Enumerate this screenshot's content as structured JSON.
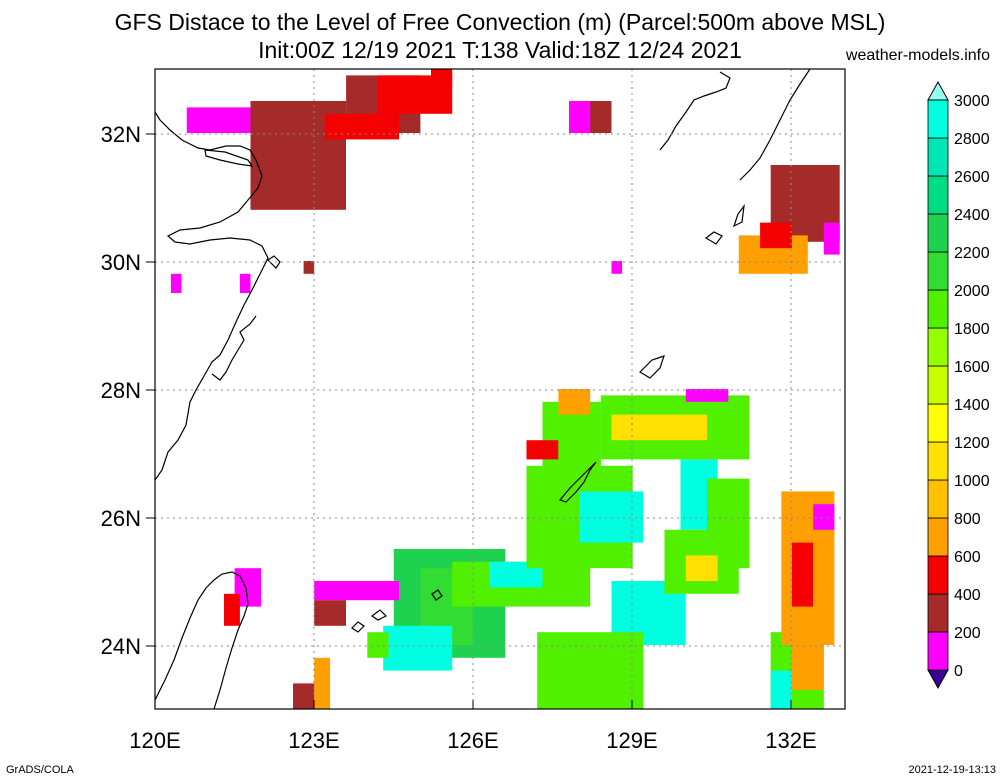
{
  "chart_data": {
    "type": "heatmap",
    "title": "GFS Distace to the Level of Free Convection (m) (Parcel:500m above MSL)",
    "subtitle": "Init:00Z 12/19 2021 T:138 Valid:18Z 12/24 2021",
    "source": "weather-models.info",
    "x_ticks": [
      "120E",
      "123E",
      "126E",
      "129E",
      "132E"
    ],
    "x_values": [
      120,
      123,
      126,
      129,
      132
    ],
    "y_ticks": [
      "24N",
      "26N",
      "28N",
      "30N",
      "32N"
    ],
    "y_values": [
      24,
      26,
      28,
      30,
      32
    ],
    "xlim": [
      120,
      133
    ],
    "ylim": [
      23,
      33
    ],
    "grid": true,
    "colorbar": {
      "labels": [
        "0",
        "200",
        "400",
        "600",
        "800",
        "1000",
        "1200",
        "1400",
        "1600",
        "1800",
        "2000",
        "2200",
        "2400",
        "2600",
        "2800",
        "3000"
      ],
      "colors": [
        "#3c0096",
        "#ff00ff",
        "#a52a2a",
        "#f50000",
        "#ffa000",
        "#ffc000",
        "#ffe000",
        "#ffff00",
        "#c8ff00",
        "#96ff00",
        "#50f000",
        "#32dc32",
        "#1ed250",
        "#00dc82",
        "#00e6b4",
        "#00ffe1",
        "#96fff0"
      ]
    },
    "regions": [
      {
        "color": "#a52a2a",
        "lon": [
          121.8,
          123.6
        ],
        "lat": [
          30.8,
          32.5
        ]
      },
      {
        "color": "#a52a2a",
        "lon": [
          123.6,
          125.0
        ],
        "lat": [
          32.0,
          32.9
        ]
      },
      {
        "color": "#f50000",
        "lon": [
          124.2,
          125.6
        ],
        "lat": [
          32.3,
          32.9
        ]
      },
      {
        "color": "#f50000",
        "lon": [
          123.2,
          124.6
        ],
        "lat": [
          31.9,
          32.3
        ]
      },
      {
        "color": "#f50000",
        "lon": [
          125.2,
          125.6
        ],
        "lat": [
          32.7,
          33.0
        ]
      },
      {
        "color": "#ff00ff",
        "lon": [
          120.6,
          121.8
        ],
        "lat": [
          32.0,
          32.4
        ]
      },
      {
        "color": "#ff00ff",
        "lon": [
          127.8,
          128.6
        ],
        "lat": [
          32.0,
          32.5
        ]
      },
      {
        "color": "#a52a2a",
        "lon": [
          128.2,
          128.6
        ],
        "lat": [
          32.0,
          32.5
        ]
      },
      {
        "color": "#a52a2a",
        "lon": [
          131.6,
          132.9
        ],
        "lat": [
          30.3,
          31.5
        ]
      },
      {
        "color": "#ffa000",
        "lon": [
          131.0,
          132.3
        ],
        "lat": [
          29.8,
          30.4
        ]
      },
      {
        "color": "#f50000",
        "lon": [
          131.4,
          132.0
        ],
        "lat": [
          30.2,
          30.6
        ]
      },
      {
        "color": "#ff00ff",
        "lon": [
          132.6,
          132.9
        ],
        "lat": [
          30.1,
          30.6
        ]
      },
      {
        "color": "#a52a2a",
        "lon": [
          122.8,
          123.0
        ],
        "lat": [
          29.8,
          30.0
        ]
      },
      {
        "color": "#ff00ff",
        "lon": [
          121.6,
          121.8
        ],
        "lat": [
          29.5,
          29.8
        ]
      },
      {
        "color": "#ff00ff",
        "lon": [
          120.3,
          120.5
        ],
        "lat": [
          29.5,
          29.8
        ]
      },
      {
        "color": "#ff00ff",
        "lon": [
          128.6,
          128.8
        ],
        "lat": [
          29.8,
          30.0
        ]
      },
      {
        "color": "#1ed250",
        "lon": [
          124.5,
          126.6
        ],
        "lat": [
          23.8,
          25.5
        ]
      },
      {
        "color": "#32dc32",
        "lon": [
          125.0,
          126.0
        ],
        "lat": [
          24.0,
          25.2
        ]
      },
      {
        "color": "#50f000",
        "lon": [
          125.6,
          128.2
        ],
        "lat": [
          24.6,
          25.3
        ]
      },
      {
        "color": "#00ffe1",
        "lon": [
          126.3,
          127.3
        ],
        "lat": [
          24.9,
          25.3
        ]
      },
      {
        "color": "#50f000",
        "lon": [
          127.0,
          129.0
        ],
        "lat": [
          25.2,
          26.8
        ]
      },
      {
        "color": "#00ffe1",
        "lon": [
          128.0,
          129.2
        ],
        "lat": [
          25.6,
          26.4
        ]
      },
      {
        "color": "#50f000",
        "lon": [
          127.3,
          128.4
        ],
        "lat": [
          26.6,
          27.8
        ]
      },
      {
        "color": "#ffa000",
        "lon": [
          127.6,
          128.2
        ],
        "lat": [
          27.6,
          28.0
        ]
      },
      {
        "color": "#f50000",
        "lon": [
          127.0,
          127.6
        ],
        "lat": [
          26.9,
          27.2
        ]
      },
      {
        "color": "#50f000",
        "lon": [
          128.4,
          131.2
        ],
        "lat": [
          26.9,
          27.9
        ]
      },
      {
        "color": "#ffe000",
        "lon": [
          128.6,
          130.4
        ],
        "lat": [
          27.2,
          27.6
        ]
      },
      {
        "color": "#ff00ff",
        "lon": [
          130.0,
          130.8
        ],
        "lat": [
          27.8,
          28.0
        ]
      },
      {
        "color": "#00ffe1",
        "lon": [
          129.9,
          130.6
        ],
        "lat": [
          25.8,
          26.9
        ]
      },
      {
        "color": "#50f000",
        "lon": [
          130.4,
          131.2
        ],
        "lat": [
          25.2,
          26.6
        ]
      },
      {
        "color": "#00ffe1",
        "lon": [
          128.6,
          130.0
        ],
        "lat": [
          24.0,
          25.0
        ]
      },
      {
        "color": "#50f000",
        "lon": [
          127.2,
          129.2
        ],
        "lat": [
          23.0,
          24.2
        ]
      },
      {
        "color": "#50f000",
        "lon": [
          129.6,
          131.0
        ],
        "lat": [
          24.8,
          25.8
        ]
      },
      {
        "color": "#ffe000",
        "lon": [
          130.0,
          130.6
        ],
        "lat": [
          25.0,
          25.4
        ]
      },
      {
        "color": "#00ffe1",
        "lon": [
          124.3,
          125.6
        ],
        "lat": [
          23.6,
          24.3
        ]
      },
      {
        "color": "#50f000",
        "lon": [
          124.0,
          124.4
        ],
        "lat": [
          23.8,
          24.2
        ]
      },
      {
        "color": "#ff00ff",
        "lon": [
          123.0,
          124.6
        ],
        "lat": [
          24.7,
          25.0
        ]
      },
      {
        "color": "#a52a2a",
        "lon": [
          123.0,
          123.6
        ],
        "lat": [
          24.3,
          24.7
        ]
      },
      {
        "color": "#ffa000",
        "lon": [
          123.0,
          123.3
        ],
        "lat": [
          23.0,
          23.8
        ]
      },
      {
        "color": "#a52a2a",
        "lon": [
          122.6,
          123.0
        ],
        "lat": [
          23.0,
          23.4
        ]
      },
      {
        "color": "#ff00ff",
        "lon": [
          121.5,
          122.0
        ],
        "lat": [
          24.6,
          25.2
        ]
      },
      {
        "color": "#f50000",
        "lon": [
          121.3,
          121.6
        ],
        "lat": [
          24.3,
          24.8
        ]
      },
      {
        "color": "#50f000",
        "lon": [
          131.6,
          132.6
        ],
        "lat": [
          23.0,
          24.2
        ]
      },
      {
        "color": "#ffa000",
        "lon": [
          132.0,
          132.6
        ],
        "lat": [
          23.3,
          24.0
        ]
      },
      {
        "color": "#ffa000",
        "lon": [
          131.8,
          132.8
        ],
        "lat": [
          24.0,
          26.4
        ]
      },
      {
        "color": "#f50000",
        "lon": [
          132.0,
          132.4
        ],
        "lat": [
          24.6,
          25.6
        ]
      },
      {
        "color": "#ff00ff",
        "lon": [
          132.4,
          132.8
        ],
        "lat": [
          25.8,
          26.2
        ]
      },
      {
        "color": "#00ffe1",
        "lon": [
          131.6,
          132.0
        ],
        "lat": [
          23.0,
          23.6
        ]
      }
    ]
  },
  "footer": {
    "left": "GrADS/COLA",
    "right": "2021-12-19-13:13"
  }
}
